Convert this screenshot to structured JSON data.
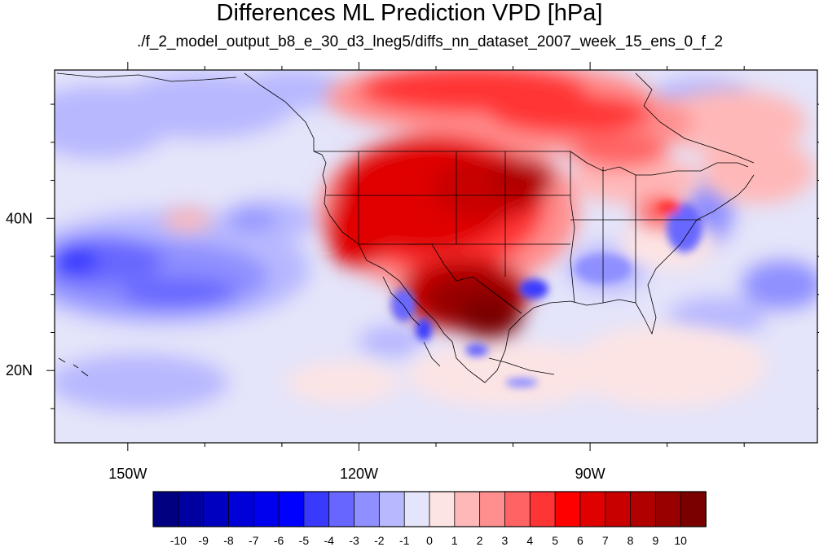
{
  "title": "Differences ML Prediction VPD [hPa]",
  "subtitle": "./f_2_model_output_b8_e_30_d3_lneg5/diffs_nn_dataset_2007_week_15_ens_0_f_2",
  "axes": {
    "x_ticks": [
      {
        "lon": -150,
        "label": "150W"
      },
      {
        "lon": -120,
        "label": "120W"
      },
      {
        "lon": -90,
        "label": "90W"
      }
    ],
    "y_ticks": [
      {
        "lat": 40,
        "label": "40N"
      },
      {
        "lat": 20,
        "label": "20N"
      }
    ],
    "lon_range": [
      -159.5,
      -60.5
    ],
    "lat_range": [
      10.5,
      59.5
    ]
  },
  "colorbar": {
    "labels": [
      "-10",
      "-9",
      "-8",
      "-7",
      "-6",
      "-5",
      "-4",
      "-3",
      "-2",
      "-1",
      "0",
      "1",
      "2",
      "3",
      "4",
      "5",
      "6",
      "7",
      "8",
      "9",
      "10"
    ],
    "colors": [
      "#000080",
      "#0000a0",
      "#0000c0",
      "#0000d8",
      "#0000ee",
      "#0000ff",
      "#3a3aff",
      "#6767ff",
      "#8f8fff",
      "#b8b8ff",
      "#e4e4fa",
      "#fde4e4",
      "#ffb8b8",
      "#ff8f8f",
      "#ff6363",
      "#ff3535",
      "#ff0000",
      "#e00000",
      "#c80000",
      "#b00000",
      "#980000",
      "#7a0000"
    ]
  }
}
